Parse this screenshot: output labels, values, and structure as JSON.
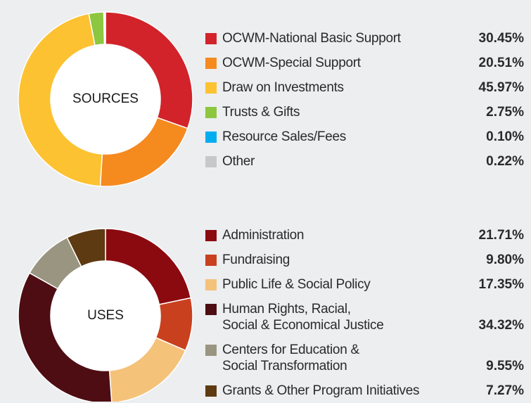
{
  "chart_data": [
    {
      "type": "pie",
      "title": "SOURCES",
      "categories": [
        "OCWM-National Basic Support",
        "OCWM-Special Support",
        "Draw on Investments",
        "Trusts & Gifts",
        "Resource Sales/Fees",
        "Other"
      ],
      "values": [
        30.45,
        20.51,
        45.97,
        2.75,
        0.1,
        0.22
      ],
      "value_labels": [
        "30.45%",
        "20.51%",
        "45.97%",
        "2.75%",
        "0.10%",
        "0.22%"
      ],
      "colors": [
        "#d2232a",
        "#f58a1f",
        "#fdc232",
        "#8dc63f",
        "#00aeef",
        "#c8c8c8"
      ]
    },
    {
      "type": "pie",
      "title": "USES",
      "categories": [
        "Administration",
        "Fundraising",
        "Public Life & Social Policy",
        "Human Rights, Racial,\nSocial & Economical Justice",
        "Centers for Education &\nSocial Transformation",
        "Grants & Other Program Initiatives"
      ],
      "values": [
        21.71,
        9.8,
        17.35,
        34.32,
        9.55,
        7.27
      ],
      "value_labels": [
        "21.71%",
        "9.80%",
        "17.35%",
        "34.32%",
        "9.55%",
        "7.27%"
      ],
      "colors": [
        "#8b0a10",
        "#c9401f",
        "#f5c27a",
        "#4e0d13",
        "#9a9580",
        "#5e3a12"
      ]
    }
  ]
}
